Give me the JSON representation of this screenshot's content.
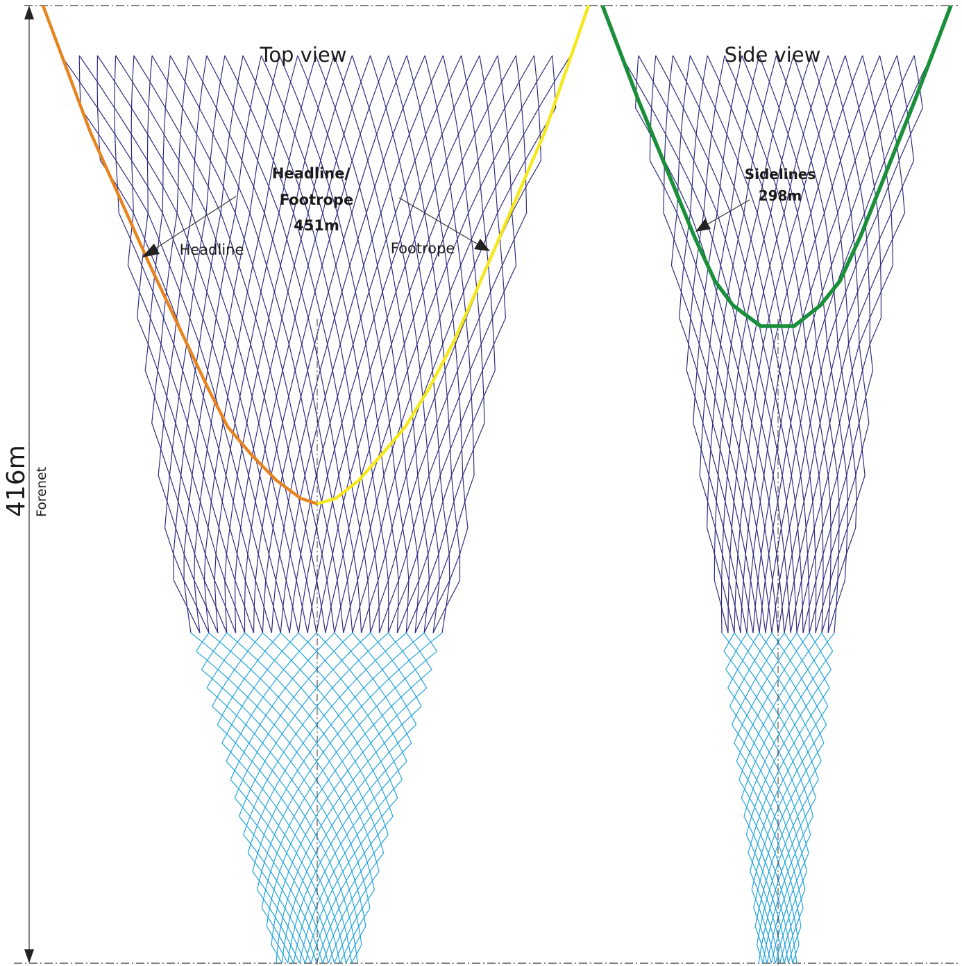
{
  "top_view": {
    "title": "Top view",
    "center_label": [
      "Headline/",
      "Footrope",
      "451m"
    ],
    "headline_label": "Headline",
    "footrope_label": "Footrope"
  },
  "side_view": {
    "title": "Side view",
    "center_label": [
      "Sidelines",
      "298m"
    ]
  },
  "dimension": {
    "length_label": "416m",
    "section_label": "Forenet"
  },
  "colors": {
    "mesh_front": "#2e2a7c",
    "mesh_rear": "#1fa3dc",
    "headline": "#e8841f",
    "footrope": "#f7e81a",
    "sidelines": "#1a8f3a",
    "guides": "#333333"
  }
}
